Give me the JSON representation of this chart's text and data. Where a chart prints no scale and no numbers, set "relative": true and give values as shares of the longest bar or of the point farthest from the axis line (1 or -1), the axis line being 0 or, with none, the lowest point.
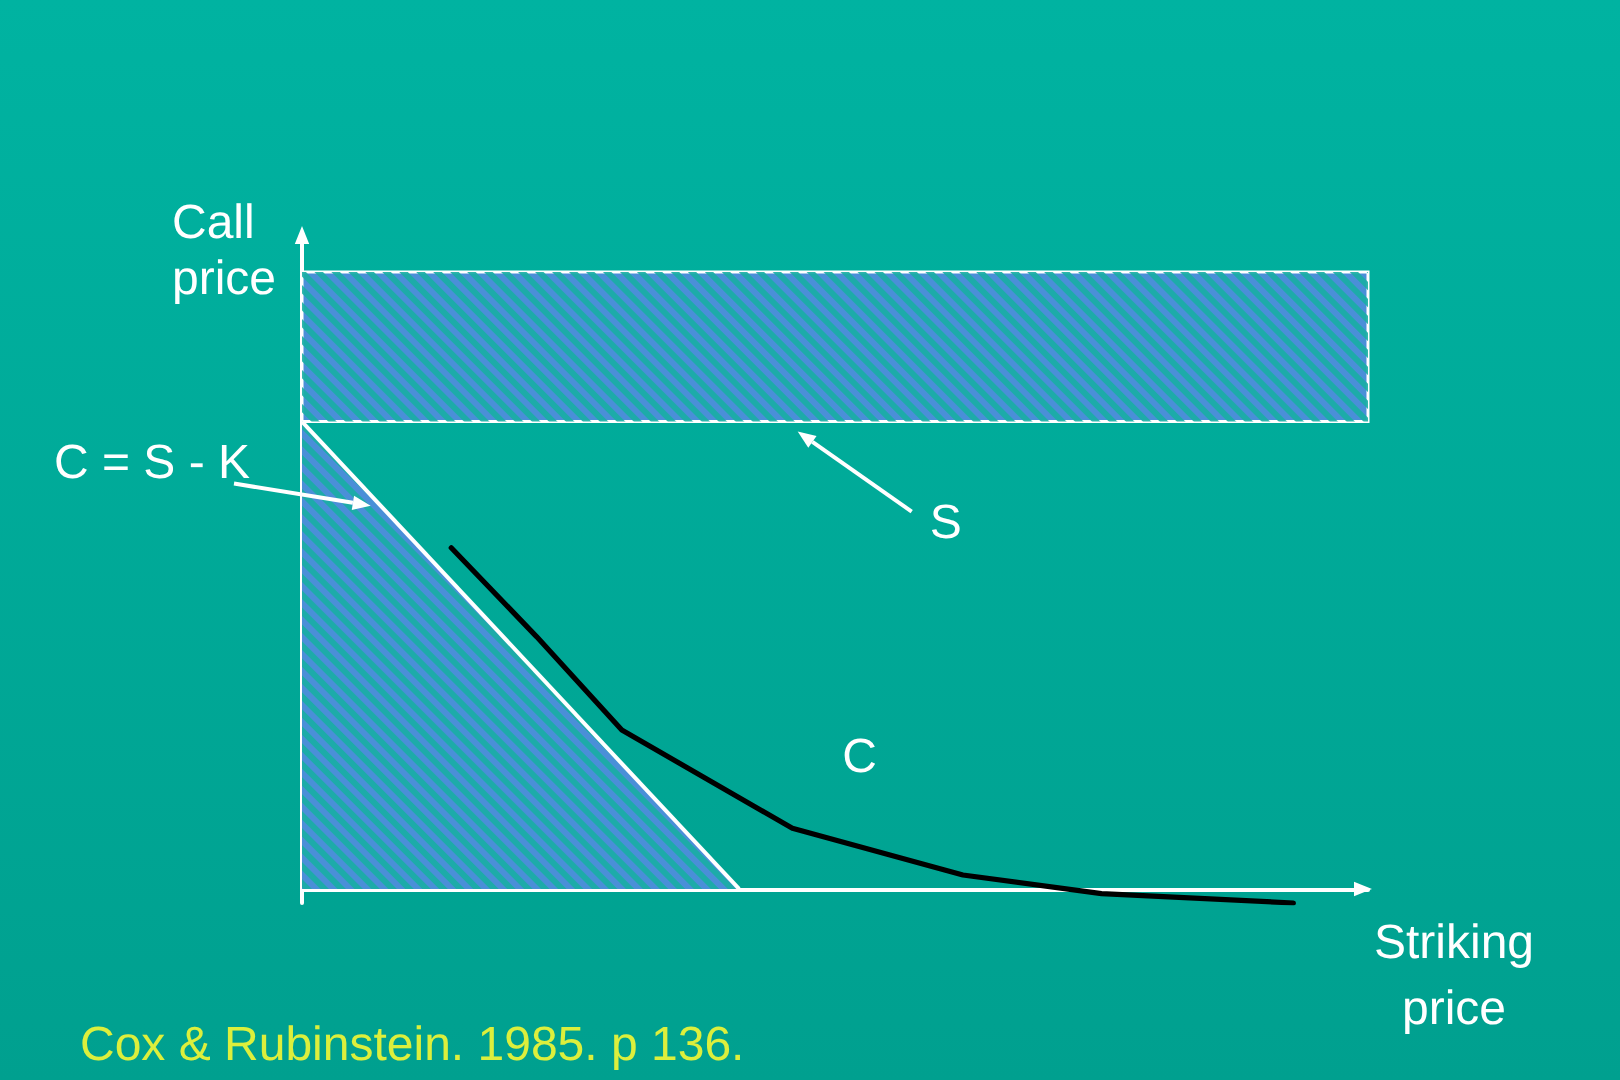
{
  "chart_data": {
    "type": "line",
    "relative": true,
    "xlabel": "Striking price",
    "ylabel": "Call price",
    "categories": [
      null,
      null,
      null,
      null,
      null,
      null,
      null,
      null,
      null,
      null,
      null,
      null,
      null,
      null,
      null,
      null,
      null,
      null,
      null,
      null,
      null,
      null,
      null,
      null,
      null,
      null,
      null,
      null,
      null,
      null,
      null,
      null,
      null,
      null,
      null,
      null,
      null,
      null,
      null,
      null,
      null,
      null,
      null,
      null,
      null,
      null,
      null,
      null,
      null,
      null,
      null,
      null,
      null,
      null,
      null,
      null,
      null,
      null,
      null,
      null,
      null,
      null,
      null,
      null,
      null,
      null,
      null,
      null,
      null,
      null,
      null,
      null,
      null,
      null,
      null,
      null,
      null,
      null,
      null,
      null,
      null,
      null,
      null,
      null,
      null,
      null,
      null,
      null,
      null,
      null,
      null,
      null,
      null,
      null,
      null,
      null,
      null,
      null,
      null,
      null,
      null
    ],
    "series": [
      {
        "type": "area",
        "name": "C = S - K",
        "color": "#4a8fd8",
        "values": [
          1,
          null,
          null,
          null,
          null,
          null,
          null,
          null,
          null,
          null,
          null,
          null,
          null,
          null,
          null,
          null,
          null,
          null,
          null,
          null,
          null,
          null,
          null,
          null,
          null,
          null,
          null,
          null,
          null,
          null,
          null,
          null,
          null,
          null,
          null,
          null,
          null,
          null,
          null,
          null,
          null,
          0,
          null,
          null,
          null,
          null,
          null,
          null,
          null,
          null,
          null,
          null,
          null,
          null,
          null,
          null,
          null,
          null,
          null,
          null,
          null,
          null,
          null,
          null,
          null,
          null,
          null,
          null,
          null,
          null,
          null,
          null,
          null,
          null,
          null,
          null,
          null,
          null,
          null,
          null,
          null,
          null,
          null,
          null,
          null,
          null,
          null,
          null,
          null,
          null,
          null,
          null,
          null,
          null,
          null,
          null,
          null,
          null,
          null,
          null,
          null
        ]
      },
      {
        "name": "C",
        "color": "#000000",
        "values": [
          null,
          null,
          null,
          null,
          null,
          null,
          null,
          null,
          null,
          null,
          null,
          null,
          null,
          null,
          0.73,
          null,
          null,
          null,
          null,
          null,
          null,
          null,
          0.54,
          null,
          null,
          null,
          null,
          null,
          null,
          null,
          0.34,
          null,
          null,
          null,
          null,
          null,
          null,
          null,
          null,
          null,
          null,
          null,
          null,
          null,
          null,
          null,
          0.13,
          null,
          null,
          null,
          null,
          null,
          null,
          null,
          null,
          null,
          null,
          null,
          null,
          null,
          null,
          null,
          0.03,
          null,
          null,
          null,
          null,
          null,
          null,
          null,
          null,
          null,
          null,
          null,
          null,
          -0.01,
          null,
          null,
          null,
          null,
          null,
          null,
          null,
          null,
          null,
          null,
          null,
          null,
          null,
          null,
          null,
          null,
          null,
          -0.03,
          null,
          null,
          null,
          null,
          null,
          null,
          null
        ]
      }
    ],
    "bands": [
      {
        "axis": "y",
        "from": 1,
        "to": 1.32,
        "label": "S",
        "color": "#4a8fd8"
      }
    ],
    "annotations": [
      "Cox & Rubinstein. 1985. p 136."
    ]
  }
}
